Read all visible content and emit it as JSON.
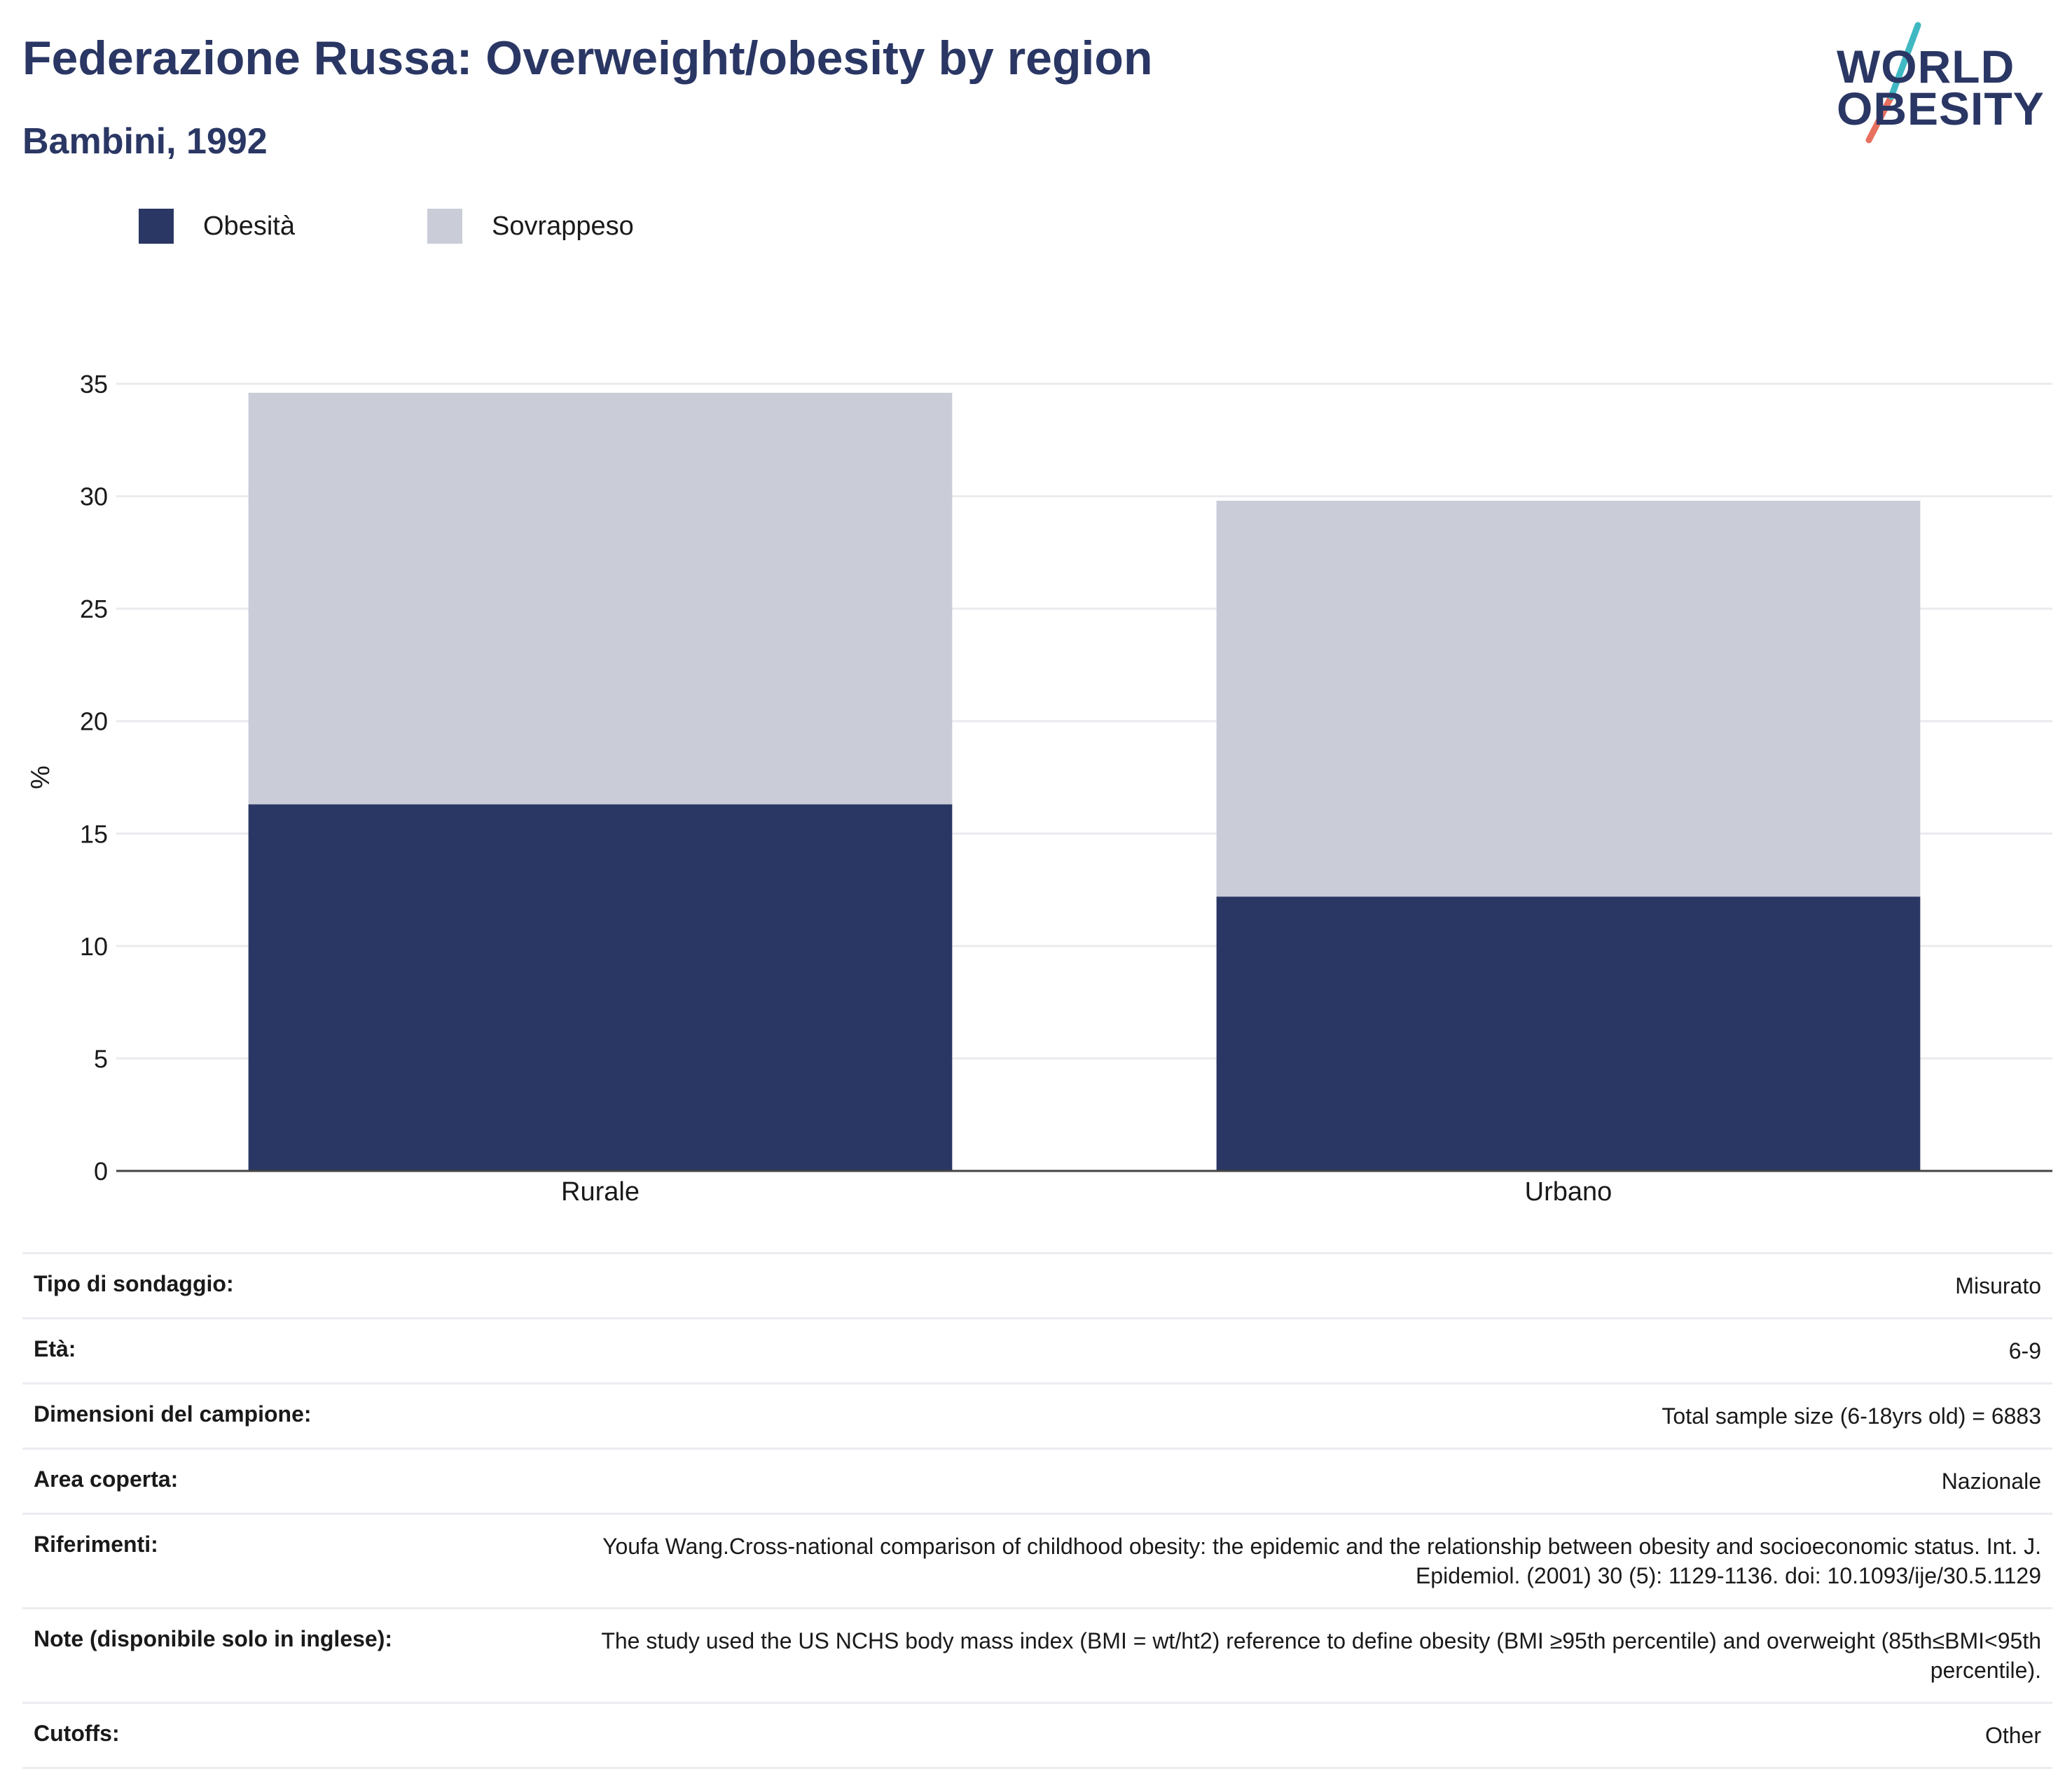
{
  "header": {
    "title": "Federazione Russa: Overweight/obesity by region",
    "subtitle": "Bambini, 1992"
  },
  "logo": {
    "line1": "WORLD",
    "line2": "OBESITY"
  },
  "colors": {
    "obesity": "#2a3764",
    "overweight": "#cacdd8",
    "text": "#2a3764"
  },
  "chart_data": {
    "type": "bar",
    "stacked": true,
    "categories": [
      "Rurale",
      "Urbano"
    ],
    "series": [
      {
        "name": "Obesità",
        "values": [
          16.3,
          12.2
        ],
        "color": "#2a3764"
      },
      {
        "name": "Sovrappeso",
        "values": [
          18.3,
          17.6
        ],
        "color": "#cacdd8"
      }
    ],
    "ylabel": "%",
    "ylim": [
      0,
      35
    ],
    "yticks": [
      0,
      5,
      10,
      15,
      20,
      25,
      30,
      35
    ],
    "grid": true,
    "legend": "top-left"
  },
  "meta": [
    {
      "label": "Tipo di sondaggio:",
      "value": "Misurato"
    },
    {
      "label": "Età:",
      "value": "6-9"
    },
    {
      "label": "Dimensioni del campione:",
      "value": "Total sample size (6-18yrs old) = 6883"
    },
    {
      "label": "Area coperta:",
      "value": "Nazionale"
    },
    {
      "label": "Riferimenti:",
      "value": "Youfa Wang.Cross-national comparison of childhood obesity: the epidemic and the relationship between obesity and socioeconomic status. Int. J. Epidemiol. (2001) 30 (5): 1129-1136. doi: 10.1093/ije/30.5.1129"
    },
    {
      "label": "Note (disponibile solo in inglese):",
      "value": "The study used the US NCHS body mass index (BMI = wt/ht2) reference to define obesity (BMI ≥95th percentile) and overweight (85th≤BMI<95th percentile)."
    },
    {
      "label": "Cutoffs:",
      "value": "Other"
    }
  ]
}
